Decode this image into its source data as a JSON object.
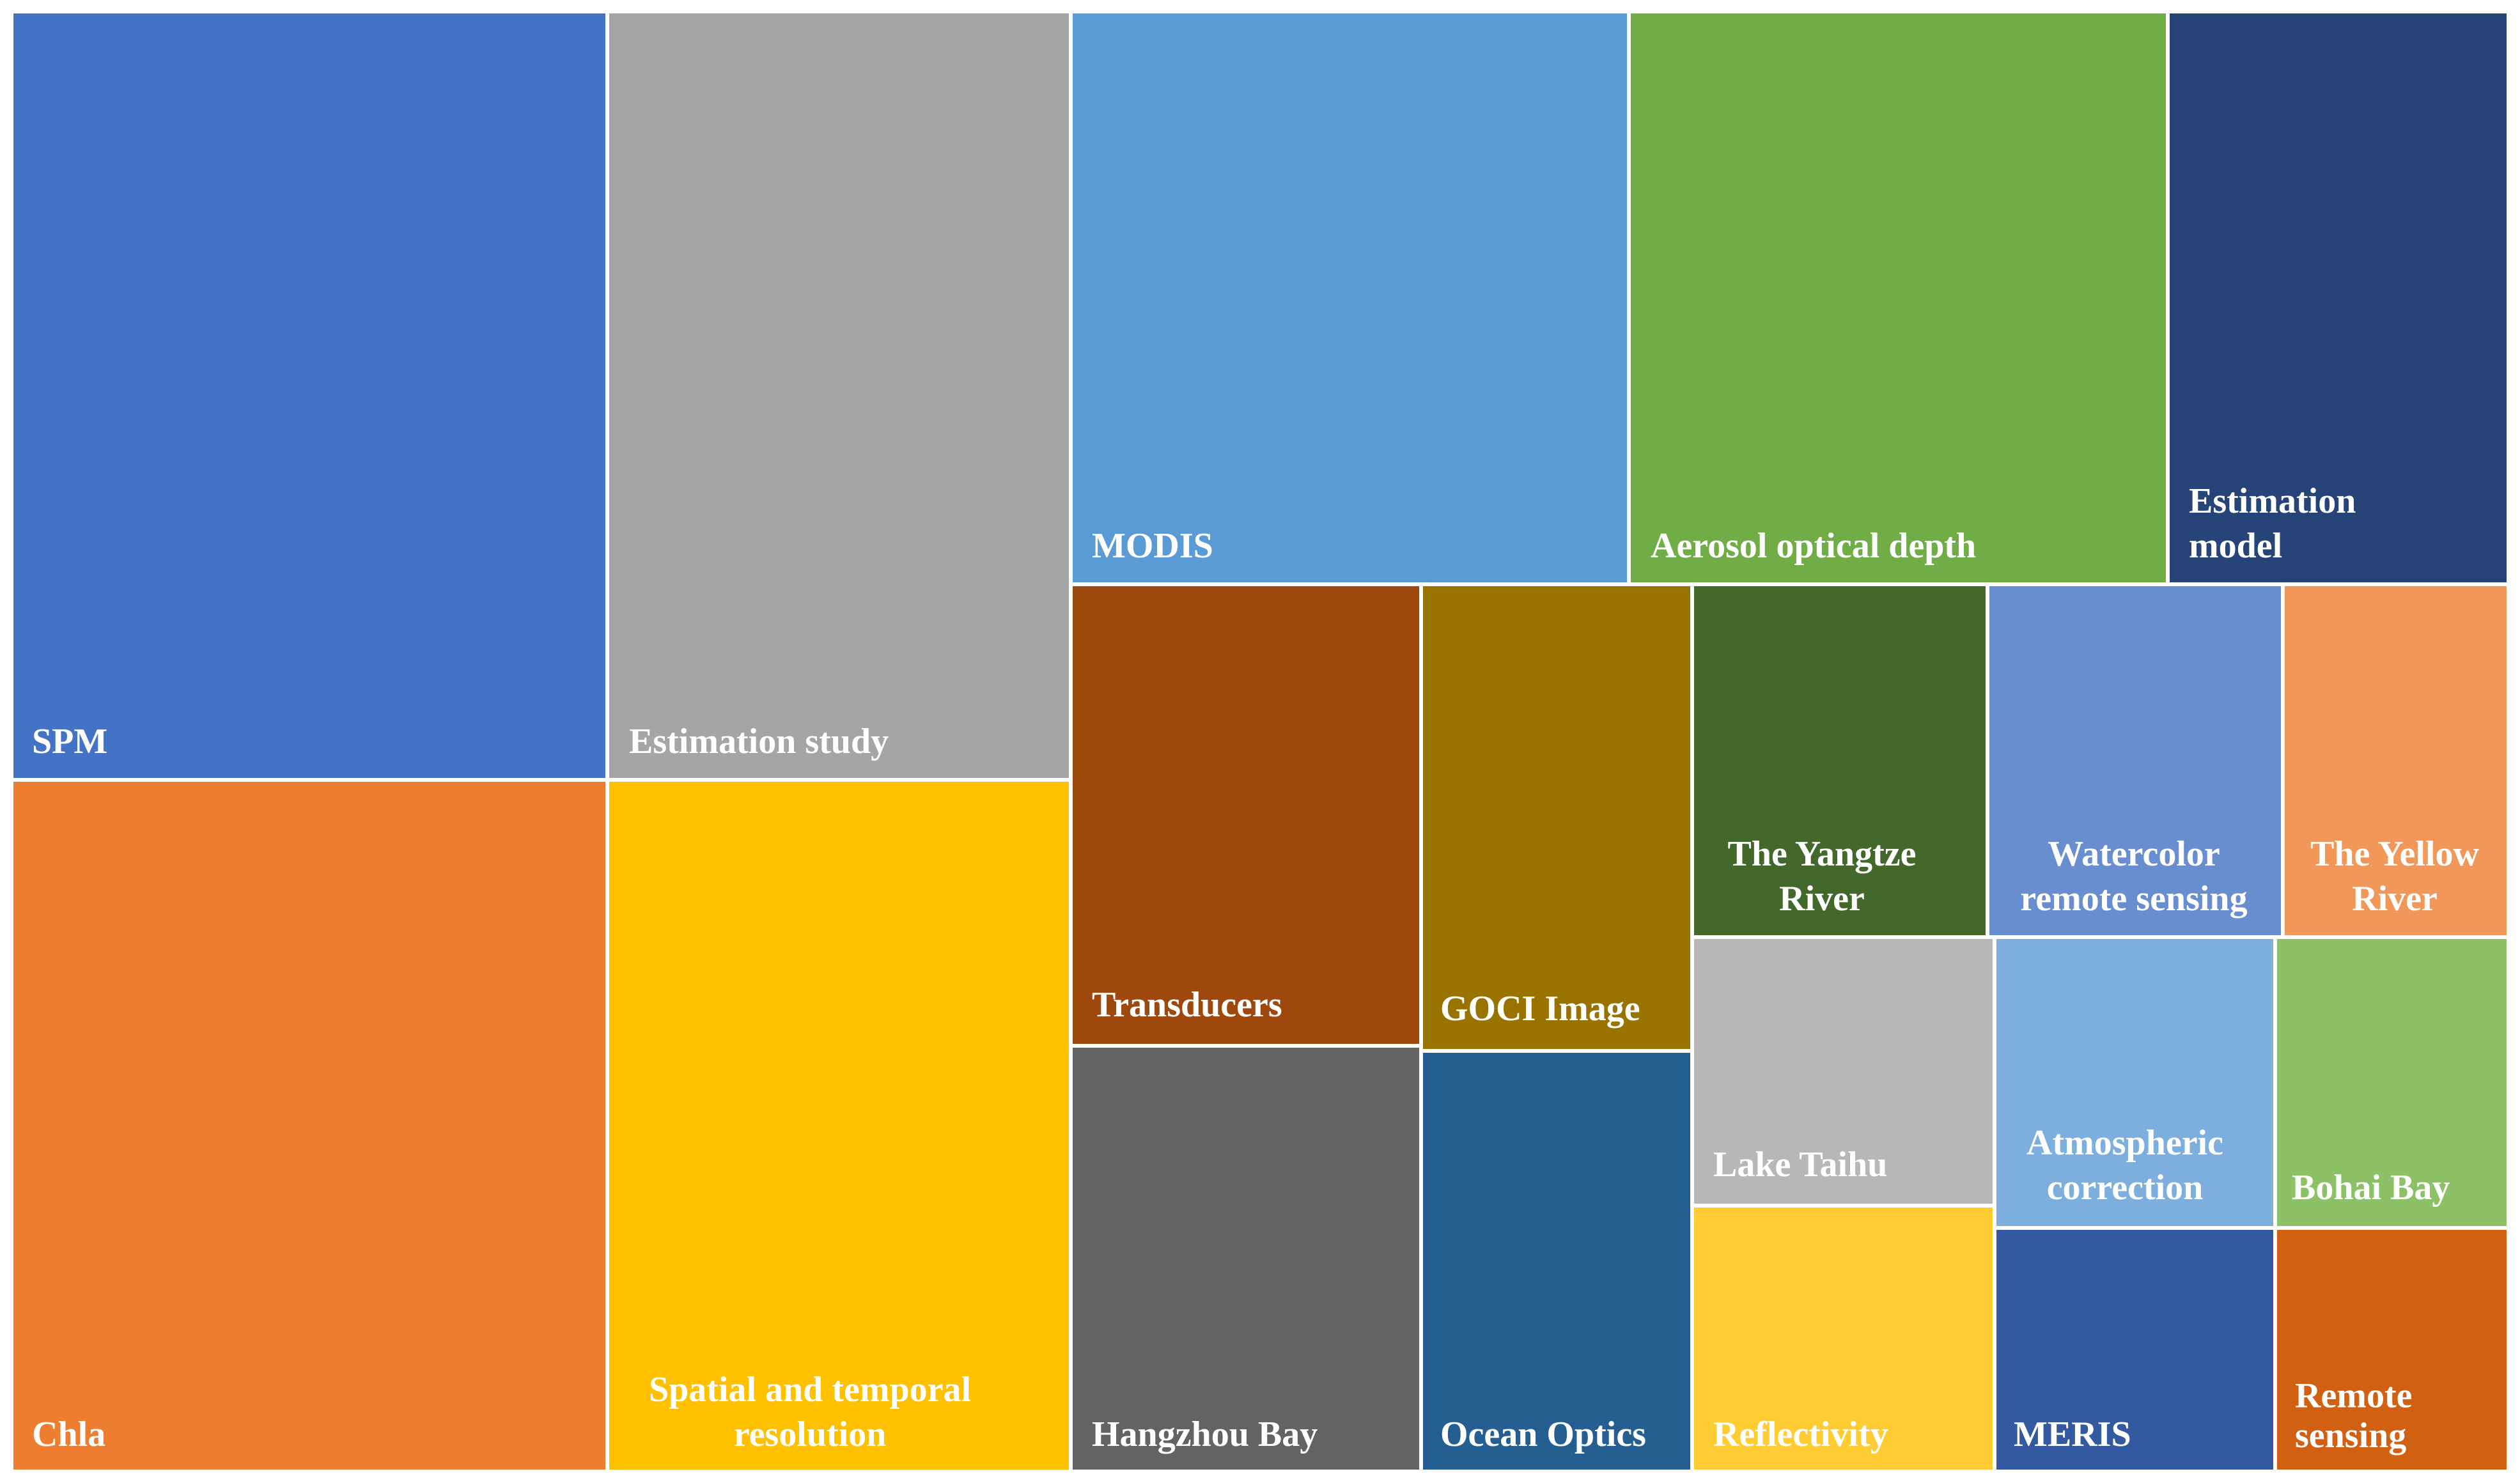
{
  "chart_data": {
    "type": "treemap",
    "title": "",
    "items": [
      {
        "label": [
          "SPM"
        ],
        "color": "#4472C4"
      },
      {
        "label": [
          "Chla"
        ],
        "color": "#ED7D31"
      },
      {
        "label": [
          "Estimation study"
        ],
        "color": "#A5A5A5"
      },
      {
        "label": [
          "Spatial and temporal",
          "resolution"
        ],
        "color": "#FFC000"
      },
      {
        "label": [
          "MODIS"
        ],
        "color": "#5B9BD5"
      },
      {
        "label": [
          "Aerosol optical depth"
        ],
        "color": "#70AD47"
      },
      {
        "label": [
          "Estimation",
          "model"
        ],
        "color": "#264478"
      },
      {
        "label": [
          "Transducers"
        ],
        "color": "#9E480E"
      },
      {
        "label": [
          "Hangzhou Bay"
        ],
        "color": "#636363"
      },
      {
        "label": [
          "GOCI Image"
        ],
        "color": "#997300"
      },
      {
        "label": [
          "Ocean Optics"
        ],
        "color": "#255E91"
      },
      {
        "label": [
          "The Yangtze",
          "River"
        ],
        "color": "#43682B"
      },
      {
        "label": [
          "Watercolor",
          "remote sensing"
        ],
        "color": "#698ED0"
      },
      {
        "label": [
          "The Yellow",
          "River"
        ],
        "color": "#F1975A"
      },
      {
        "label": [
          "Lake Taihu"
        ],
        "color": "#B7B7B7"
      },
      {
        "label": [
          "Reflectivity"
        ],
        "color": "#FFCD33"
      },
      {
        "label": [
          "Atmospheric",
          "correction"
        ],
        "color": "#7CAFDD"
      },
      {
        "label": [
          "Bohai Bay"
        ],
        "color": "#8CC168"
      },
      {
        "label": [
          "MERIS"
        ],
        "color": "#335AA1"
      },
      {
        "label": [
          "Remote",
          "sensing"
        ],
        "color": "#D26012"
      }
    ]
  }
}
